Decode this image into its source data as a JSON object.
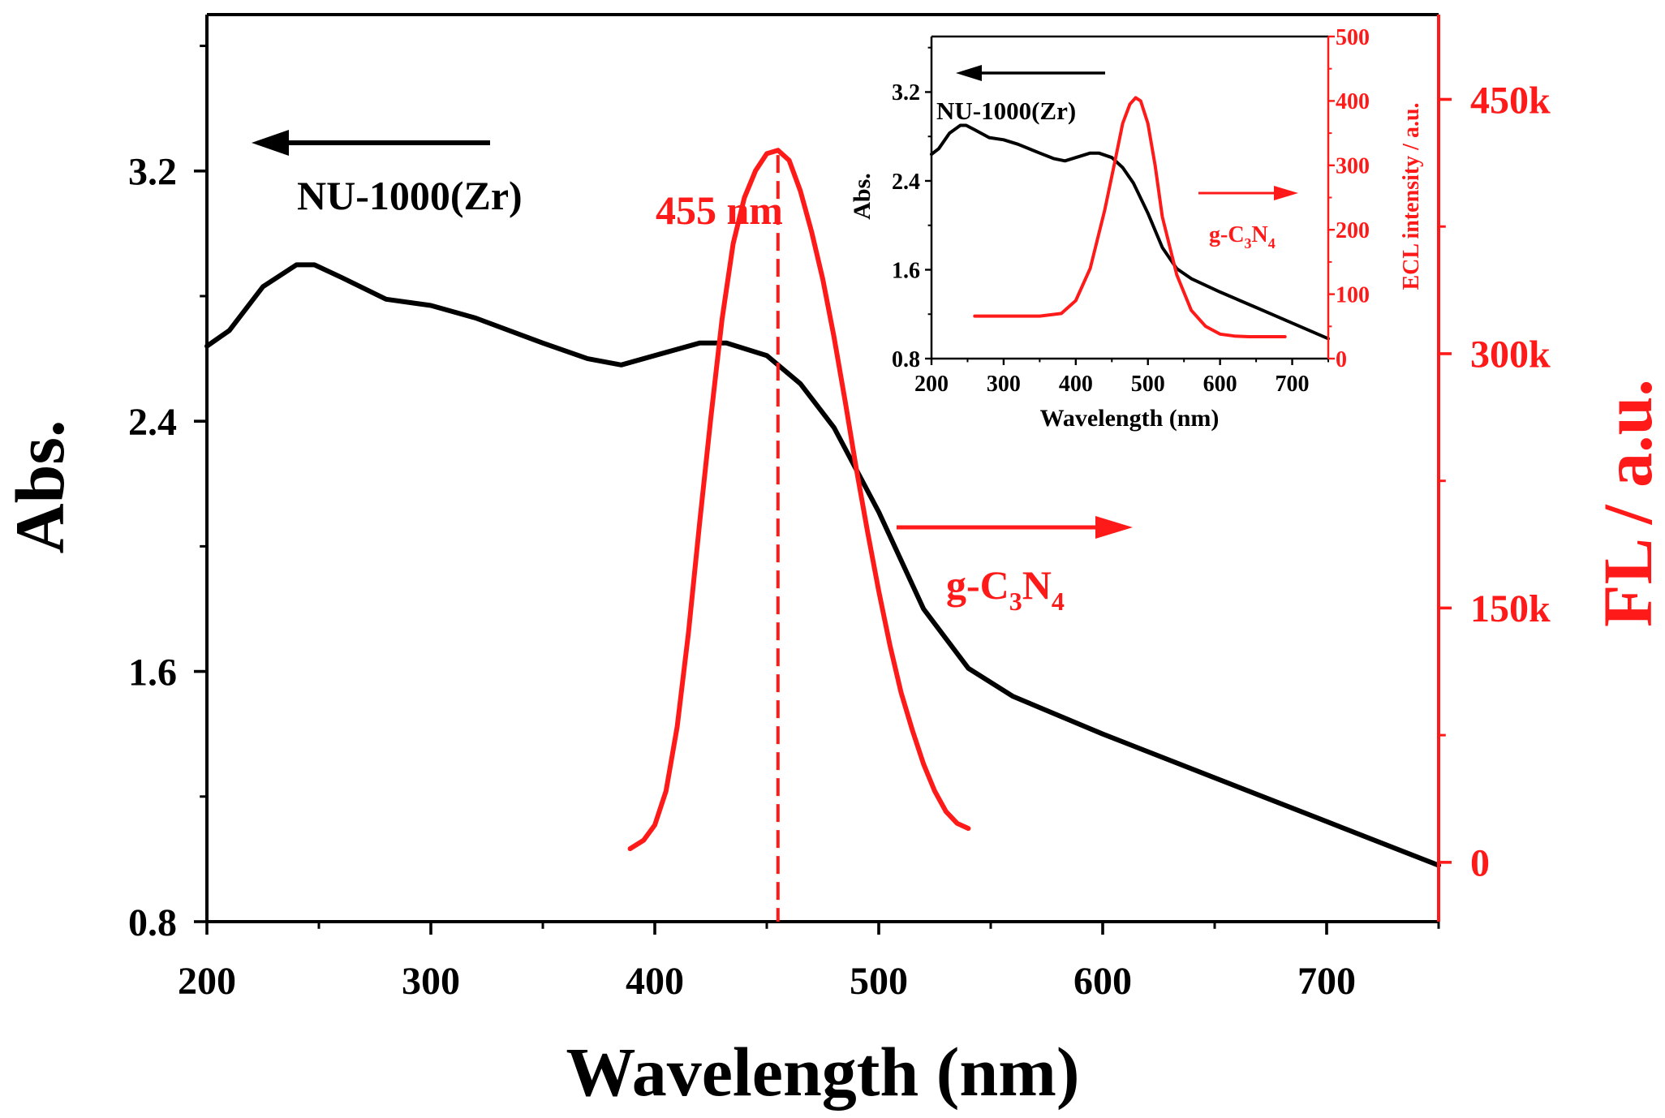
{
  "chart_data": [
    {
      "type": "line",
      "id": "main",
      "xlabel": "Wavelength (nm)",
      "ylabel_left": "Abs.",
      "ylabel_right": "FL / a.u.",
      "xlim": [
        200,
        750
      ],
      "ylim_left": [
        0.8,
        3.7
      ],
      "ylim_right": [
        -35000,
        500000
      ],
      "x_ticks": [
        200,
        300,
        400,
        500,
        600,
        700
      ],
      "x_tick_labels": [
        "200",
        "300",
        "400",
        "500",
        "600",
        "700"
      ],
      "y_left_ticks": [
        0.8,
        1.6,
        2.4,
        3.2
      ],
      "y_left_tick_labels": [
        "0.8",
        "1.6",
        "2.4",
        "3.2"
      ],
      "y_right_ticks": [
        0,
        150000,
        300000,
        450000
      ],
      "y_right_tick_labels": [
        "0",
        "150k",
        "300k",
        "450k"
      ],
      "series": [
        {
          "name": "NU-1000(Zr)",
          "axis": "left",
          "color": "#000000",
          "x": [
            200,
            210,
            225,
            240,
            248,
            260,
            280,
            300,
            320,
            350,
            370,
            385,
            400,
            420,
            432,
            450,
            465,
            480,
            500,
            520,
            540,
            560,
            600,
            650,
            700,
            750
          ],
          "y": [
            2.64,
            2.69,
            2.83,
            2.9,
            2.9,
            2.86,
            2.79,
            2.77,
            2.73,
            2.65,
            2.6,
            2.58,
            2.61,
            2.65,
            2.65,
            2.61,
            2.52,
            2.38,
            2.11,
            1.8,
            1.61,
            1.52,
            1.4,
            1.26,
            1.12,
            0.98
          ]
        },
        {
          "name": "g-C3N4",
          "axis": "right",
          "color": "#ff1a1a",
          "x": [
            389,
            395,
            400,
            405,
            410,
            415,
            420,
            425,
            430,
            435,
            440,
            445,
            450,
            455,
            460,
            465,
            470,
            475,
            480,
            485,
            490,
            495,
            500,
            505,
            510,
            515,
            520,
            525,
            530,
            535,
            540
          ],
          "y": [
            8000,
            13000,
            22000,
            42000,
            80000,
            135000,
            200000,
            262000,
            320000,
            365000,
            392000,
            408000,
            418000,
            420000,
            414000,
            396000,
            372000,
            344000,
            310000,
            272000,
            232000,
            195000,
            160000,
            128000,
            100000,
            78000,
            58000,
            42000,
            30000,
            23000,
            20000
          ]
        }
      ],
      "annotations": {
        "peak_label": "455 nm",
        "peak_x": 455,
        "left_series_label": "NU-1000(Zr)",
        "right_series_label": {
          "prefix": "g-C",
          "sub1": "3",
          "mid": "N",
          "sub2": "4"
        }
      }
    },
    {
      "type": "line",
      "id": "inset",
      "xlabel": "Wavelength (nm)",
      "ylabel_left": "Abs.",
      "ylabel_right": "ECL intensity / a.u.",
      "xlim": [
        200,
        750
      ],
      "ylim_left": [
        0.8,
        3.7
      ],
      "ylim_right": [
        0,
        500
      ],
      "x_ticks": [
        200,
        300,
        400,
        500,
        600,
        700
      ],
      "x_tick_labels": [
        "200",
        "300",
        "400",
        "500",
        "600",
        "700"
      ],
      "y_left_ticks": [
        0.8,
        1.6,
        2.4,
        3.2
      ],
      "y_left_tick_labels": [
        "0.8",
        "1.6",
        "2.4",
        "3.2"
      ],
      "y_right_ticks": [
        0,
        100,
        200,
        300,
        400,
        500
      ],
      "y_right_tick_labels": [
        "0",
        "100",
        "200",
        "300",
        "400",
        "500"
      ],
      "series": [
        {
          "name": "NU-1000(Zr)",
          "axis": "left",
          "color": "#000000",
          "x": [
            200,
            210,
            225,
            240,
            248,
            260,
            280,
            300,
            320,
            350,
            370,
            385,
            400,
            420,
            432,
            450,
            465,
            480,
            500,
            520,
            540,
            560,
            600,
            650,
            700,
            750
          ],
          "y": [
            2.64,
            2.69,
            2.83,
            2.9,
            2.9,
            2.86,
            2.79,
            2.77,
            2.73,
            2.65,
            2.6,
            2.58,
            2.61,
            2.65,
            2.65,
            2.61,
            2.52,
            2.38,
            2.11,
            1.8,
            1.61,
            1.52,
            1.4,
            1.26,
            1.12,
            0.98
          ]
        },
        {
          "name": "g-C3N4",
          "axis": "right",
          "color": "#ff1a1a",
          "x": [
            260,
            300,
            350,
            380,
            400,
            420,
            440,
            455,
            465,
            475,
            483,
            490,
            500,
            510,
            520,
            540,
            560,
            580,
            600,
            620,
            640,
            690
          ],
          "y": [
            66,
            66,
            66,
            70,
            90,
            140,
            230,
            310,
            365,
            395,
            405,
            400,
            365,
            300,
            220,
            130,
            75,
            50,
            38,
            35,
            34,
            34
          ]
        }
      ],
      "annotations": {
        "left_series_label": "NU-1000(Zr)",
        "right_series_label": {
          "prefix": "g-C",
          "sub1": "3",
          "mid": "N",
          "sub2": "4"
        }
      }
    }
  ]
}
